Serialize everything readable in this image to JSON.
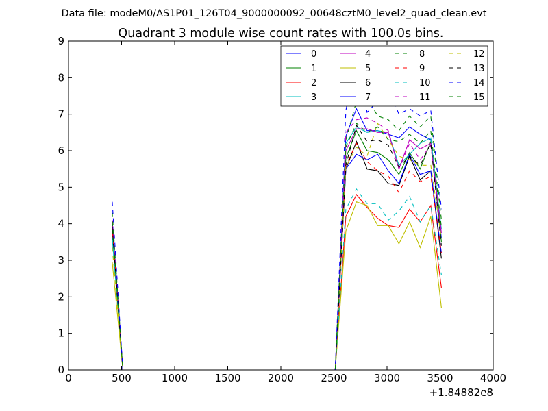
{
  "chart_data": {
    "type": "line",
    "suptitle": "Data file: modeM0/AS1P01_126T04_9000000092_00648cztM0_level2_quad_clean.evt",
    "title": "Quadrant 3 module wise count rates with 100.0s bins.",
    "xlabel": "",
    "ylabel": "",
    "x_offset_label": "+1.84882e8",
    "xlim": [
      0,
      4000
    ],
    "ylim": [
      0,
      9
    ],
    "xticks": [
      0,
      500,
      1000,
      1500,
      2000,
      2500,
      3000,
      3500,
      4000
    ],
    "yticks": [
      0,
      1,
      2,
      3,
      4,
      5,
      6,
      7,
      8,
      9
    ],
    "x": [
      412,
      512,
      612,
      712,
      812,
      912,
      1012,
      1112,
      1212,
      1312,
      1412,
      1512,
      1612,
      1712,
      1812,
      1912,
      2012,
      2112,
      2212,
      2312,
      2412,
      2512,
      2612,
      2712,
      2812,
      2912,
      3012,
      3112,
      3212,
      3312,
      3412,
      3512
    ],
    "series": [
      {
        "name": "0",
        "color": "#0000ff",
        "dash": "solid",
        "values": [
          4.0,
          0,
          0,
          0,
          0,
          0,
          0,
          0,
          0,
          0,
          0,
          0,
          0,
          0,
          0,
          0,
          0,
          0,
          0,
          0,
          0,
          0,
          6.4,
          7.15,
          6.55,
          6.55,
          6.45,
          6.35,
          6.65,
          6.45,
          6.3,
          3.6
        ]
      },
      {
        "name": "1",
        "color": "#008000",
        "dash": "solid",
        "values": [
          3.9,
          0,
          0,
          0,
          0,
          0,
          0,
          0,
          0,
          0,
          0,
          0,
          0,
          0,
          0,
          0,
          0,
          0,
          0,
          0,
          0,
          0,
          5.8,
          6.55,
          6.0,
          5.95,
          5.75,
          5.35,
          5.95,
          5.5,
          6.25,
          3.5
        ]
      },
      {
        "name": "2",
        "color": "#ff0000",
        "dash": "solid",
        "values": [
          3.85,
          0,
          0,
          0,
          0,
          0,
          0,
          0,
          0,
          0,
          0,
          0,
          0,
          0,
          0,
          0,
          0,
          0,
          0,
          0,
          0,
          0,
          4.2,
          4.8,
          4.45,
          4.15,
          3.95,
          3.9,
          4.4,
          4.05,
          4.5,
          2.25
        ]
      },
      {
        "name": "3",
        "color": "#00bfbf",
        "dash": "solid",
        "values": [
          3.6,
          0,
          0,
          0,
          0,
          0,
          0,
          0,
          0,
          0,
          0,
          0,
          0,
          0,
          0,
          0,
          0,
          0,
          0,
          0,
          0,
          0,
          6.2,
          6.65,
          6.5,
          6.55,
          6.5,
          5.6,
          5.9,
          6.2,
          6.35,
          3.85
        ]
      },
      {
        "name": "4",
        "color": "#bf00bf",
        "dash": "solid",
        "values": [
          4.1,
          0,
          0,
          0,
          0,
          0,
          0,
          0,
          0,
          0,
          0,
          0,
          0,
          0,
          0,
          0,
          0,
          0,
          0,
          0,
          0,
          0,
          6.0,
          6.6,
          6.6,
          6.5,
          6.5,
          5.5,
          6.3,
          6.05,
          6.2,
          3.75
        ]
      },
      {
        "name": "5",
        "color": "#bfbf00",
        "dash": "solid",
        "values": [
          2.95,
          0,
          0,
          0,
          0,
          0,
          0,
          0,
          0,
          0,
          0,
          0,
          0,
          0,
          0,
          0,
          0,
          0,
          0,
          0,
          0,
          0,
          3.8,
          4.6,
          4.5,
          3.95,
          3.95,
          3.45,
          4.05,
          3.35,
          4.2,
          1.7
        ]
      },
      {
        "name": "6",
        "color": "#000000",
        "dash": "solid",
        "values": [
          3.95,
          0,
          0,
          0,
          0,
          0,
          0,
          0,
          0,
          0,
          0,
          0,
          0,
          0,
          0,
          0,
          0,
          0,
          0,
          0,
          0,
          0,
          5.5,
          6.25,
          5.5,
          5.45,
          5.1,
          5.05,
          5.85,
          5.2,
          5.45,
          3.05
        ]
      },
      {
        "name": "7",
        "color": "#0000ff",
        "dash": "solid",
        "values": [
          4.05,
          0,
          0,
          0,
          0,
          0,
          0,
          0,
          0,
          0,
          0,
          0,
          0,
          0,
          0,
          0,
          0,
          0,
          0,
          0,
          0,
          0,
          5.5,
          5.9,
          5.75,
          5.9,
          5.45,
          5.1,
          5.9,
          5.35,
          5.45,
          3.2
        ]
      },
      {
        "name": "8",
        "color": "#008000",
        "dash": "dashed",
        "values": [
          4.3,
          0,
          0,
          0,
          0,
          0,
          0,
          0,
          0,
          0,
          0,
          0,
          0,
          0,
          0,
          0,
          0,
          0,
          0,
          0,
          0,
          0,
          6.3,
          7.35,
          7.45,
          6.95,
          6.85,
          6.55,
          6.95,
          6.65,
          6.95,
          4.1
        ]
      },
      {
        "name": "9",
        "color": "#ff0000",
        "dash": "dashed",
        "values": [
          3.95,
          0,
          0,
          0,
          0,
          0,
          0,
          0,
          0,
          0,
          0,
          0,
          0,
          0,
          0,
          0,
          0,
          0,
          0,
          0,
          0,
          0,
          5.6,
          6.2,
          5.7,
          5.45,
          5.3,
          4.85,
          5.45,
          5.15,
          5.3,
          3.2
        ]
      },
      {
        "name": "10",
        "color": "#00bfbf",
        "dash": "dashed",
        "values": [
          3.6,
          0,
          0,
          0,
          0,
          0,
          0,
          0,
          0,
          0,
          0,
          0,
          0,
          0,
          0,
          0,
          0,
          0,
          0,
          0,
          0,
          0,
          4.4,
          4.95,
          4.55,
          4.55,
          4.1,
          4.35,
          4.75,
          4.05,
          4.5,
          2.6
        ]
      },
      {
        "name": "11",
        "color": "#bf00bf",
        "dash": "dashed",
        "values": [
          4.1,
          0,
          0,
          0,
          0,
          0,
          0,
          0,
          0,
          0,
          0,
          0,
          0,
          0,
          0,
          0,
          0,
          0,
          0,
          0,
          0,
          0,
          6.5,
          6.85,
          6.9,
          6.75,
          6.55,
          5.5,
          6.2,
          5.75,
          6.15,
          3.75
        ]
      },
      {
        "name": "12",
        "color": "#bfbf00",
        "dash": "dashed",
        "values": [
          3.35,
          0,
          0,
          0,
          0,
          0,
          0,
          0,
          0,
          0,
          0,
          0,
          0,
          0,
          0,
          0,
          0,
          0,
          0,
          0,
          0,
          0,
          5.55,
          6.1,
          5.85,
          6.75,
          6.3,
          5.85,
          5.75,
          5.6,
          5.6,
          3.6
        ]
      },
      {
        "name": "13",
        "color": "#000000",
        "dash": "dashed",
        "values": [
          3.9,
          0,
          0,
          0,
          0,
          0,
          0,
          0,
          0,
          0,
          0,
          0,
          0,
          0,
          0,
          0,
          0,
          0,
          0,
          0,
          0,
          0,
          5.6,
          6.7,
          6.25,
          6.3,
          6.15,
          5.55,
          5.85,
          5.6,
          6.2,
          3.4
        ]
      },
      {
        "name": "14",
        "color": "#0000ff",
        "dash": "dashed",
        "values": [
          4.6,
          0,
          0,
          0,
          0,
          0,
          0,
          0,
          0,
          0,
          0,
          0,
          0,
          0,
          0,
          0,
          0,
          0,
          0,
          0,
          0,
          0,
          7.1,
          8.55,
          7.05,
          7.35,
          7.7,
          7.0,
          7.15,
          6.95,
          7.1,
          4.4
        ]
      },
      {
        "name": "15",
        "color": "#008000",
        "dash": "dashed",
        "values": [
          4.05,
          0,
          0,
          0,
          0,
          0,
          0,
          0,
          0,
          0,
          0,
          0,
          0,
          0,
          0,
          0,
          0,
          0,
          0,
          0,
          0,
          0,
          6.1,
          6.75,
          6.5,
          6.65,
          6.3,
          6.25,
          6.45,
          6.2,
          6.55,
          3.9
        ]
      }
    ],
    "grid": false,
    "legend": "top-right, 4 columns"
  }
}
